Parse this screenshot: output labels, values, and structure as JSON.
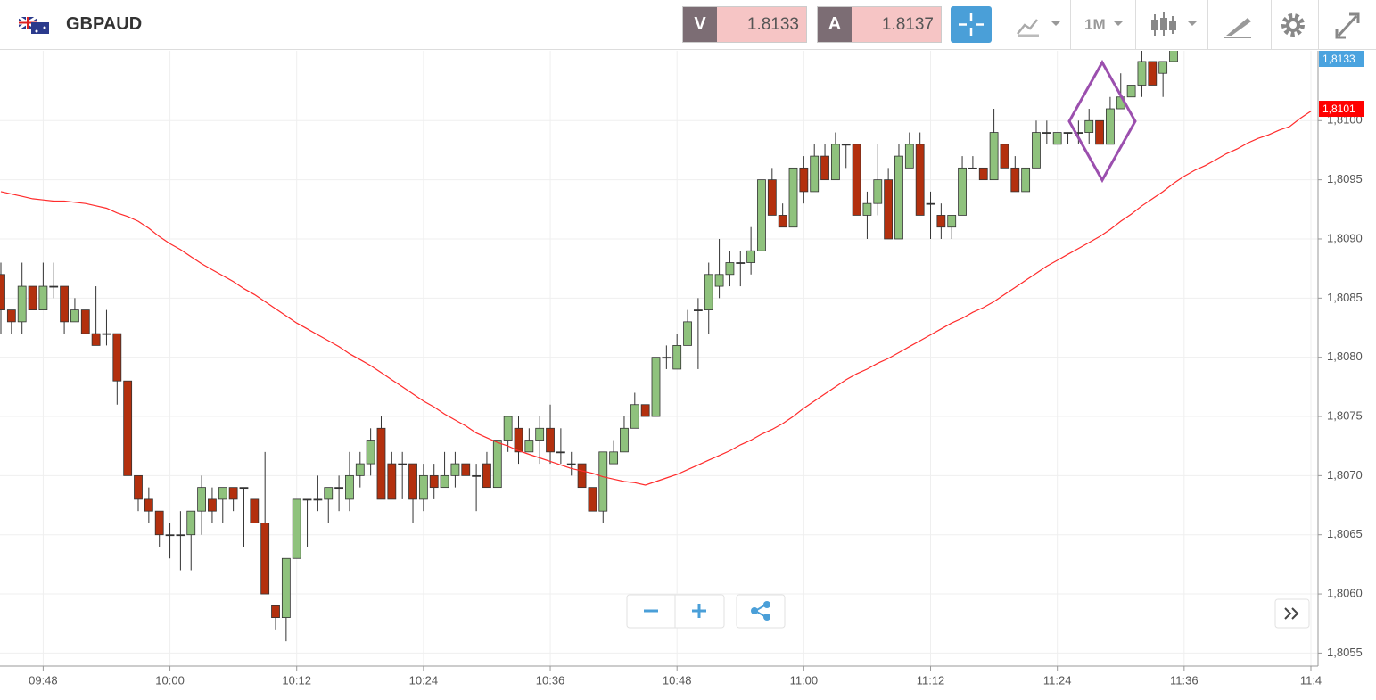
{
  "header": {
    "symbol": "GBPAUD",
    "sell_label": "V",
    "sell": 1.8133,
    "buy_label": "A",
    "buy": 1.8137,
    "timeframe": "1M"
  },
  "chart_data": {
    "type": "candlestick",
    "categories": [
      null,
      null,
      null,
      null,
      "09:48",
      null,
      null,
      null,
      null,
      null,
      null,
      null,
      null,
      null,
      null,
      null,
      "10:00",
      null,
      null,
      null,
      null,
      null,
      null,
      null,
      null,
      null,
      null,
      null,
      "10:12",
      null,
      null,
      null,
      null,
      null,
      null,
      null,
      null,
      null,
      null,
      null,
      "10:24",
      null,
      null,
      null,
      null,
      null,
      null,
      null,
      null,
      null,
      null,
      null,
      "10:36",
      null,
      null,
      null,
      null,
      null,
      null,
      null,
      null,
      null,
      null,
      null,
      "10:48",
      null,
      null,
      null,
      null,
      null,
      null,
      null,
      null,
      null,
      null,
      null,
      "11:00",
      null,
      null,
      null,
      null,
      null,
      null,
      null,
      null,
      null,
      null,
      null,
      "11:12",
      null,
      null,
      null,
      null,
      null,
      null,
      null,
      null,
      null,
      null,
      null,
      "11:24",
      null,
      null,
      null,
      null,
      null,
      null,
      null,
      null,
      null,
      null,
      null,
      "11:36",
      null,
      null,
      null,
      null,
      null,
      null,
      null,
      null,
      null,
      null,
      null,
      "11:4"
    ],
    "open": [
      1.8087,
      1.8084,
      1.8083,
      1.8086,
      1.8084,
      1.8086,
      1.8086,
      1.8083,
      1.8084,
      1.8082,
      1.8082,
      1.8082,
      1.8078,
      1.807,
      1.8068,
      1.8067,
      1.8065,
      1.8065,
      1.8065,
      1.8067,
      1.8068,
      1.8068,
      1.8069,
      1.8069,
      1.8068,
      1.8066,
      1.8059,
      1.8058,
      1.8063,
      1.8068,
      1.8068,
      1.8068,
      1.8069,
      1.8068,
      1.807,
      1.8071,
      1.8074,
      1.8071,
      1.8071,
      1.8071,
      1.8068,
      1.807,
      1.8069,
      1.807,
      1.8071,
      1.807,
      1.8071,
      1.8069,
      1.8073,
      1.8074,
      1.8072,
      1.8073,
      1.8074,
      1.8072,
      1.8071,
      1.8071,
      1.8069,
      1.8067,
      1.8071,
      1.8072,
      1.8074,
      1.8076,
      1.8075,
      1.808,
      1.8079,
      1.8081,
      1.8084,
      1.8084,
      1.8086,
      1.8087,
      1.8088,
      1.8088,
      1.8089,
      1.8095,
      1.8092,
      1.8091,
      1.8096,
      1.8094,
      1.8097,
      1.8095,
      1.8098,
      1.8098,
      1.8092,
      1.8093,
      1.8095,
      1.809,
      1.8096,
      1.8098,
      1.8093,
      1.8092,
      1.8091,
      1.8092,
      1.8096,
      1.8096,
      1.8095,
      1.8098,
      1.8096,
      1.8094,
      1.8096,
      1.8099,
      1.8098,
      1.8099,
      1.8099,
      1.8099,
      1.81,
      1.8098,
      1.8101,
      1.8102,
      1.8103,
      1.8105,
      1.8104,
      1.8105,
      null,
      null,
      null,
      null,
      null,
      null,
      null,
      null,
      null,
      null,
      null,
      null,
      null
    ],
    "high": [
      1.8088,
      1.8084,
      1.8088,
      1.8086,
      1.8088,
      1.8088,
      1.8086,
      1.8085,
      1.8084,
      1.8086,
      1.8084,
      1.8082,
      1.8078,
      1.807,
      1.8069,
      1.8067,
      1.8066,
      1.8067,
      1.8067,
      1.807,
      1.8069,
      1.8069,
      1.8069,
      1.8069,
      1.8068,
      1.8072,
      1.8059,
      1.8063,
      1.8068,
      1.8068,
      1.807,
      1.8069,
      1.807,
      1.8072,
      1.8072,
      1.8074,
      1.8075,
      1.8072,
      1.8072,
      1.8071,
      1.8071,
      1.8071,
      1.8072,
      1.8072,
      1.8071,
      1.8071,
      1.8072,
      1.8073,
      1.8075,
      1.8075,
      1.8074,
      1.8075,
      1.8076,
      1.8074,
      1.8072,
      1.8071,
      1.8069,
      1.8072,
      1.8073,
      1.8075,
      1.8077,
      1.8076,
      1.808,
      1.8081,
      1.8082,
      1.8084,
      1.8085,
      1.8088,
      1.809,
      1.8089,
      1.8089,
      1.8091,
      1.8095,
      1.8096,
      1.8093,
      1.8096,
      1.8097,
      1.8098,
      1.8098,
      1.8099,
      1.8098,
      1.8098,
      1.8094,
      1.8098,
      1.8096,
      1.8098,
      1.8099,
      1.8099,
      1.8094,
      1.8093,
      1.8092,
      1.8097,
      1.8097,
      1.8096,
      1.8101,
      1.8098,
      1.8097,
      1.8096,
      1.81,
      1.81,
      1.8099,
      1.8099,
      1.81,
      1.8101,
      1.81,
      1.8102,
      1.8104,
      1.8103,
      1.8106,
      1.8105,
      1.8105,
      1.8106,
      null,
      null,
      null,
      null,
      null,
      null,
      null,
      null,
      null,
      null,
      null,
      null,
      null
    ],
    "low": [
      1.8082,
      1.8082,
      1.8082,
      1.8084,
      1.8084,
      1.8085,
      1.8082,
      1.8083,
      1.8082,
      1.8081,
      1.8081,
      1.8076,
      1.807,
      1.8067,
      1.8066,
      1.8064,
      1.8063,
      1.8062,
      1.8062,
      1.8065,
      1.8066,
      1.8066,
      1.8067,
      1.8064,
      1.8066,
      1.806,
      1.8057,
      1.8056,
      1.8063,
      1.8064,
      1.8067,
      1.8066,
      1.8067,
      1.8067,
      1.8069,
      1.807,
      1.8068,
      1.8068,
      1.8068,
      1.8066,
      1.8067,
      1.8068,
      1.8069,
      1.8069,
      1.807,
      1.8067,
      1.8069,
      1.8069,
      1.8072,
      1.8071,
      1.8072,
      1.8071,
      1.8071,
      1.8071,
      1.807,
      1.8069,
      1.8067,
      1.8066,
      1.8071,
      1.8072,
      1.8074,
      1.8075,
      1.8075,
      1.8079,
      1.8079,
      1.8081,
      1.8079,
      1.8082,
      1.8085,
      1.8086,
      1.8086,
      1.8087,
      1.8089,
      1.8092,
      1.8091,
      1.8091,
      1.8093,
      1.8094,
      1.8095,
      1.8095,
      1.8096,
      1.8092,
      1.809,
      1.8092,
      1.809,
      1.809,
      1.8096,
      1.8092,
      1.809,
      1.809,
      1.809,
      1.8092,
      1.8096,
      1.8095,
      1.8095,
      1.8096,
      1.8094,
      1.8094,
      1.8096,
      1.8098,
      1.8098,
      1.8098,
      1.8098,
      1.8098,
      1.8098,
      1.8098,
      1.8101,
      1.8102,
      1.8102,
      1.8103,
      1.8102,
      1.8105,
      null,
      null,
      null,
      null,
      null,
      null,
      null,
      null,
      null,
      null,
      null,
      null,
      null
    ],
    "close": [
      1.8084,
      1.8083,
      1.8086,
      1.8084,
      1.8086,
      1.8086,
      1.8083,
      1.8084,
      1.8082,
      1.8081,
      1.8082,
      1.8078,
      1.807,
      1.8068,
      1.8067,
      1.8065,
      1.8065,
      1.8065,
      1.8067,
      1.8069,
      1.8067,
      1.8069,
      1.8068,
      1.8069,
      1.8066,
      1.806,
      1.8058,
      1.8063,
      1.8068,
      1.8068,
      1.8068,
      1.8069,
      1.8069,
      1.807,
      1.8071,
      1.8073,
      1.8068,
      1.8068,
      1.8071,
      1.8068,
      1.807,
      1.8069,
      1.807,
      1.8071,
      1.807,
      1.807,
      1.8069,
      1.8073,
      1.8075,
      1.8072,
      1.8073,
      1.8074,
      1.8072,
      1.8072,
      1.8071,
      1.8069,
      1.8067,
      1.8072,
      1.8072,
      1.8074,
      1.8076,
      1.8075,
      1.808,
      1.808,
      1.8081,
      1.8083,
      1.8084,
      1.8087,
      1.8087,
      1.8088,
      1.8088,
      1.8089,
      1.8095,
      1.8092,
      1.8091,
      1.8096,
      1.8094,
      1.8097,
      1.8095,
      1.8098,
      1.8098,
      1.8092,
      1.8093,
      1.8095,
      1.809,
      1.8097,
      1.8098,
      1.8092,
      1.8093,
      1.8091,
      1.8092,
      1.8096,
      1.8096,
      1.8095,
      1.8099,
      1.8096,
      1.8094,
      1.8096,
      1.8099,
      1.8099,
      1.8099,
      1.8099,
      1.8099,
      1.81,
      1.8098,
      1.8101,
      1.8102,
      1.8103,
      1.8105,
      1.8103,
      1.8105,
      1.8106,
      null,
      null,
      null,
      null,
      null,
      null,
      null,
      null,
      null,
      null,
      null,
      null,
      null
    ],
    "up_color": "#8fc27d",
    "down_color": "#b3300e",
    "ma": {
      "color": "#ff2b2b",
      "values": [
        1.8094,
        1.80938,
        1.80936,
        1.80934,
        1.80933,
        1.80932,
        1.80932,
        1.80931,
        1.8093,
        1.80928,
        1.80926,
        1.80922,
        1.80919,
        1.80915,
        1.80909,
        1.80902,
        1.80896,
        1.80891,
        1.80885,
        1.80879,
        1.80874,
        1.80869,
        1.80864,
        1.80858,
        1.80853,
        1.80847,
        1.80841,
        1.80835,
        1.80829,
        1.80824,
        1.80819,
        1.80814,
        1.80809,
        1.80803,
        1.80798,
        1.80793,
        1.80787,
        1.80781,
        1.80775,
        1.80769,
        1.80763,
        1.80758,
        1.80752,
        1.80747,
        1.80742,
        1.80736,
        1.80732,
        1.80728,
        1.80725,
        1.80721,
        1.80718,
        1.80715,
        1.80712,
        1.80709,
        1.80706,
        1.80704,
        1.80702,
        1.80699,
        1.80697,
        1.80695,
        1.80694,
        1.80692,
        1.80695,
        1.80698,
        1.80701,
        1.80705,
        1.80709,
        1.80713,
        1.80717,
        1.80721,
        1.80726,
        1.8073,
        1.80735,
        1.80739,
        1.80744,
        1.8075,
        1.80757,
        1.80763,
        1.80769,
        1.80775,
        1.80781,
        1.80786,
        1.8079,
        1.80795,
        1.80799,
        1.80804,
        1.80809,
        1.80814,
        1.80819,
        1.80824,
        1.80829,
        1.80833,
        1.80838,
        1.80842,
        1.80847,
        1.80853,
        1.80859,
        1.80865,
        1.80871,
        1.80877,
        1.80882,
        1.80887,
        1.80892,
        1.80897,
        1.80902,
        1.80908,
        1.80915,
        1.80921,
        1.80928,
        1.80934,
        1.8094,
        1.80947,
        1.80953,
        1.80958,
        1.80962,
        1.80967,
        1.80972,
        1.80976,
        1.80981,
        1.80985,
        1.80988,
        1.80992,
        1.80995,
        1.81002,
        1.81008
      ]
    },
    "ylim": [
      1.80539,
      1.81059
    ],
    "yticks": [
      {
        "value": 1.8055,
        "label": "1,8055"
      },
      {
        "value": 1.806,
        "label": "1,8060"
      },
      {
        "value": 1.8065,
        "label": "1,8065"
      },
      {
        "value": 1.807,
        "label": "1,8070"
      },
      {
        "value": 1.8075,
        "label": "1,8075"
      },
      {
        "value": 1.808,
        "label": "1,8080"
      },
      {
        "value": 1.8085,
        "label": "1,8085"
      },
      {
        "value": 1.809,
        "label": "1,8090"
      },
      {
        "value": 1.8095,
        "label": "1,8095"
      },
      {
        "value": 1.81,
        "label": "1,8100"
      }
    ],
    "price_tags": [
      {
        "value": 1.8133,
        "label": "1,8133",
        "color": "#4aa3df"
      },
      {
        "value": 1.8101,
        "label": "1,8101",
        "color": "#ff0000"
      }
    ],
    "grid": true
  }
}
